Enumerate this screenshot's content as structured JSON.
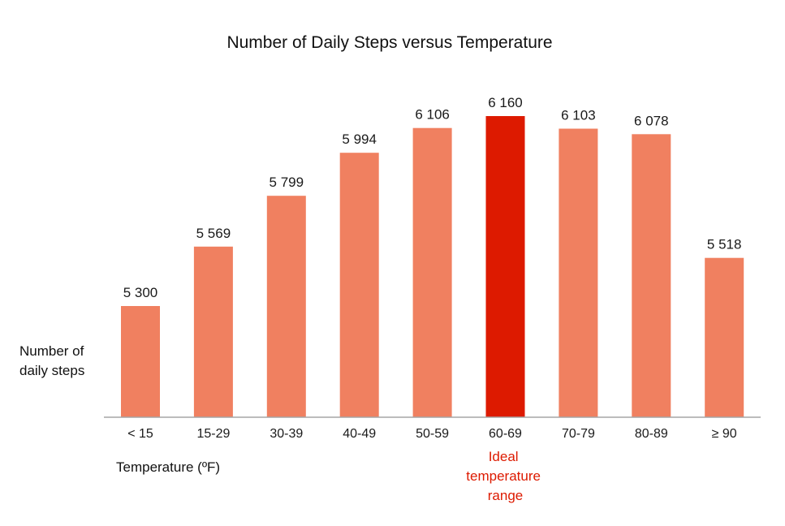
{
  "chart_data": {
    "type": "bar",
    "title": "Number of Daily Steps versus Temperature",
    "ylabel": [
      "Number of",
      "daily steps"
    ],
    "xlabel": "Temperature  (ºF)",
    "categories": [
      "< 15",
      "15-29",
      "30-39",
      "40-49",
      "50-59",
      "60-69",
      "70-79",
      "80-89",
      "≥ 90"
    ],
    "values": [
      5300,
      5569,
      5799,
      5994,
      6106,
      6160,
      6103,
      6078,
      5518
    ],
    "value_labels": [
      "5 300",
      "5 569",
      "5 799",
      "5 994",
      "6 106",
      "6 160",
      "6 103",
      "6 078",
      "5 518"
    ],
    "highlight_index": 5,
    "annotation": [
      "Ideal",
      "temperature",
      "range"
    ],
    "colors": {
      "bar": "#F08060",
      "highlight": "#DD1A00",
      "axis": "#A6A6A6",
      "annotation": "#DD1A00"
    }
  }
}
